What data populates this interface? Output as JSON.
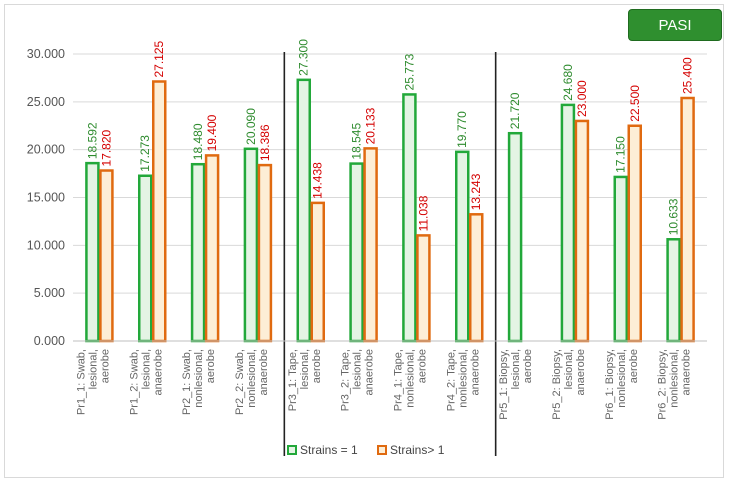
{
  "badge": "PASI",
  "chart_data": {
    "type": "bar",
    "ylim": [
      0,
      30000
    ],
    "yticks": [
      "0.000",
      "5.000",
      "10.000",
      "15.000",
      "20.000",
      "25.000",
      "30.000"
    ],
    "categories": [
      [
        "Pr1_1: Swab,",
        "lesional,",
        "aerobe"
      ],
      [
        "Pr1_2: Swab,",
        "lesional,",
        "anaerobe"
      ],
      [
        "Pr2_1: Swab,",
        "nonlesional,",
        "aerobe"
      ],
      [
        "Pr2_2: Swab,",
        "nonlesional,",
        "anaerobe"
      ],
      [
        "Pr3_1: Tape,",
        "lesional,",
        "aerobe"
      ],
      [
        "Pr3_2: Tape,",
        "lesional,",
        "anaerobe"
      ],
      [
        "Pr4_1: Tape,",
        "nonlesional,",
        "aerobe"
      ],
      [
        "Pr4_2: Tape,",
        "nonlesional,",
        "anaerobe"
      ],
      [
        "Pr5_1: Biopsy,",
        "lesional,",
        "aerobe"
      ],
      [
        "Pr5_2: Biopsy,",
        "lesional,",
        "anaerobe"
      ],
      [
        "Pr6_1: Biopsy,",
        "nonlesional,",
        "aerobe"
      ],
      [
        "Pr6_2: Biopsy,",
        "nonlesional,",
        "anaerobe"
      ]
    ],
    "series": [
      {
        "name": "Strains = 1",
        "color": "#22a83a",
        "fill": "#e4f4e4",
        "values": [
          18592,
          17273,
          18480,
          20090,
          27300,
          18545,
          25773,
          19770,
          21720,
          24680,
          17150,
          10633
        ],
        "labels": [
          "18.592",
          "17.273",
          "18.480",
          "20.090",
          "27.300",
          "18.545",
          "25.773",
          "19.770",
          "21.720",
          "24.680",
          "17.150",
          "10.633"
        ]
      },
      {
        "name": "Strains> 1",
        "color": "#e06a10",
        "fill": "#fdeed6",
        "values": [
          17820,
          27125,
          19400,
          18386,
          14438,
          20133,
          11038,
          13243,
          null,
          23000,
          22500,
          25400
        ],
        "labels": [
          "17.820",
          "27.125",
          "19.400",
          "18.386",
          "14.438",
          "20.133",
          "11.038",
          "13.243",
          "",
          "23.000",
          "22.500",
          "25.400"
        ]
      }
    ],
    "separators_after": [
      4,
      8
    ],
    "grid": true,
    "legend": "bottom"
  }
}
